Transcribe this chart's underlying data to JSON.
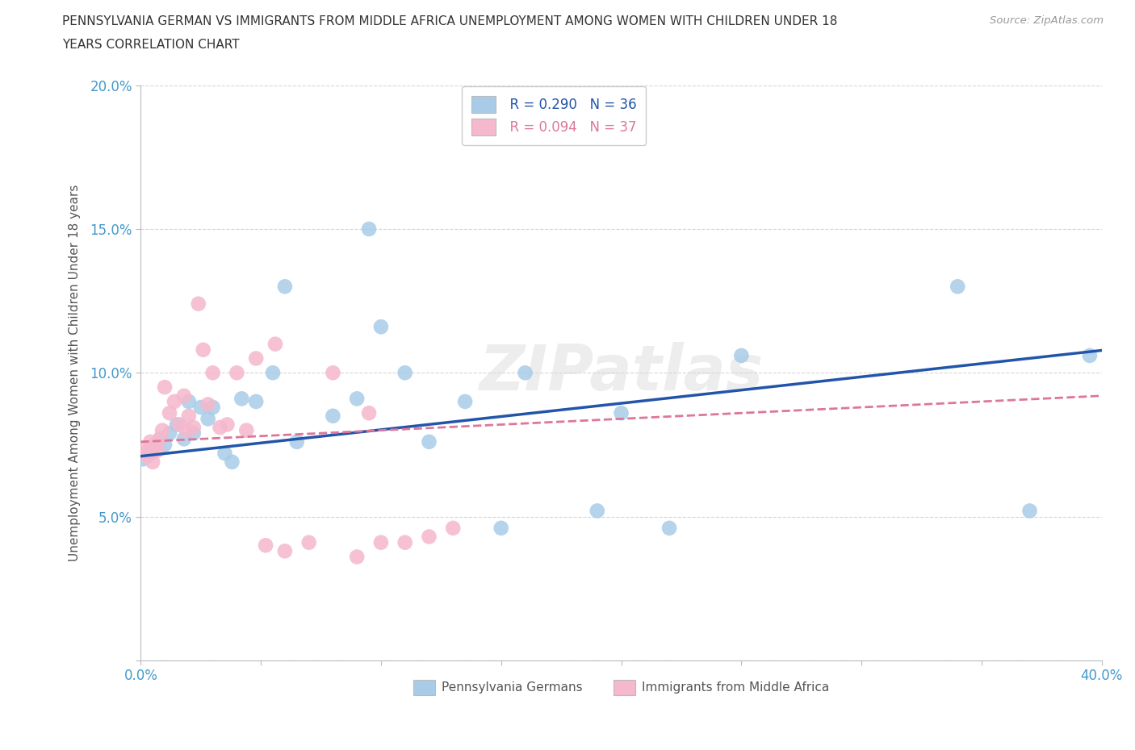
{
  "title_line1": "PENNSYLVANIA GERMAN VS IMMIGRANTS FROM MIDDLE AFRICA UNEMPLOYMENT AMONG WOMEN WITH CHILDREN UNDER 18",
  "title_line2": "YEARS CORRELATION CHART",
  "source": "Source: ZipAtlas.com",
  "ylabel": "Unemployment Among Women with Children Under 18 years",
  "blue_color": "#a8cce8",
  "pink_color": "#f5b8cc",
  "blue_line_color": "#2255aa",
  "pink_line_color": "#dd7799",
  "legend_R_blue": "R = 0.290",
  "legend_N_blue": "N = 36",
  "legend_R_pink": "R = 0.094",
  "legend_N_pink": "N = 37",
  "tick_color": "#4499cc",
  "title_color": "#333333",
  "source_color": "#999999",
  "ylabel_color": "#555555",
  "background_color": "#ffffff",
  "grid_color": "#cccccc",
  "watermark": "ZIPatlas",
  "watermark_color": "#d8d8d8",
  "blue_x": [
    0.001,
    0.004,
    0.006,
    0.008,
    0.01,
    0.012,
    0.015,
    0.018,
    0.02,
    0.022,
    0.025,
    0.028,
    0.03,
    0.035,
    0.038,
    0.042,
    0.048,
    0.055,
    0.06,
    0.065,
    0.08,
    0.09,
    0.095,
    0.1,
    0.11,
    0.12,
    0.135,
    0.15,
    0.16,
    0.19,
    0.2,
    0.22,
    0.25,
    0.34,
    0.37,
    0.395
  ],
  "blue_y": [
    0.07,
    0.072,
    0.075,
    0.077,
    0.075,
    0.079,
    0.082,
    0.077,
    0.09,
    0.079,
    0.088,
    0.084,
    0.088,
    0.072,
    0.069,
    0.091,
    0.09,
    0.1,
    0.13,
    0.076,
    0.085,
    0.091,
    0.15,
    0.116,
    0.1,
    0.076,
    0.09,
    0.046,
    0.1,
    0.052,
    0.086,
    0.046,
    0.106,
    0.13,
    0.052,
    0.106
  ],
  "pink_x": [
    0.001,
    0.002,
    0.003,
    0.004,
    0.005,
    0.006,
    0.007,
    0.008,
    0.009,
    0.01,
    0.012,
    0.014,
    0.016,
    0.018,
    0.019,
    0.02,
    0.022,
    0.024,
    0.026,
    0.028,
    0.03,
    0.033,
    0.036,
    0.04,
    0.044,
    0.048,
    0.052,
    0.056,
    0.06,
    0.07,
    0.08,
    0.09,
    0.095,
    0.1,
    0.11,
    0.12,
    0.13
  ],
  "pink_y": [
    0.072,
    0.074,
    0.071,
    0.076,
    0.069,
    0.075,
    0.073,
    0.077,
    0.08,
    0.095,
    0.086,
    0.09,
    0.082,
    0.092,
    0.08,
    0.085,
    0.081,
    0.124,
    0.108,
    0.089,
    0.1,
    0.081,
    0.082,
    0.1,
    0.08,
    0.105,
    0.04,
    0.11,
    0.038,
    0.041,
    0.1,
    0.036,
    0.086,
    0.041,
    0.041,
    0.043,
    0.046
  ]
}
